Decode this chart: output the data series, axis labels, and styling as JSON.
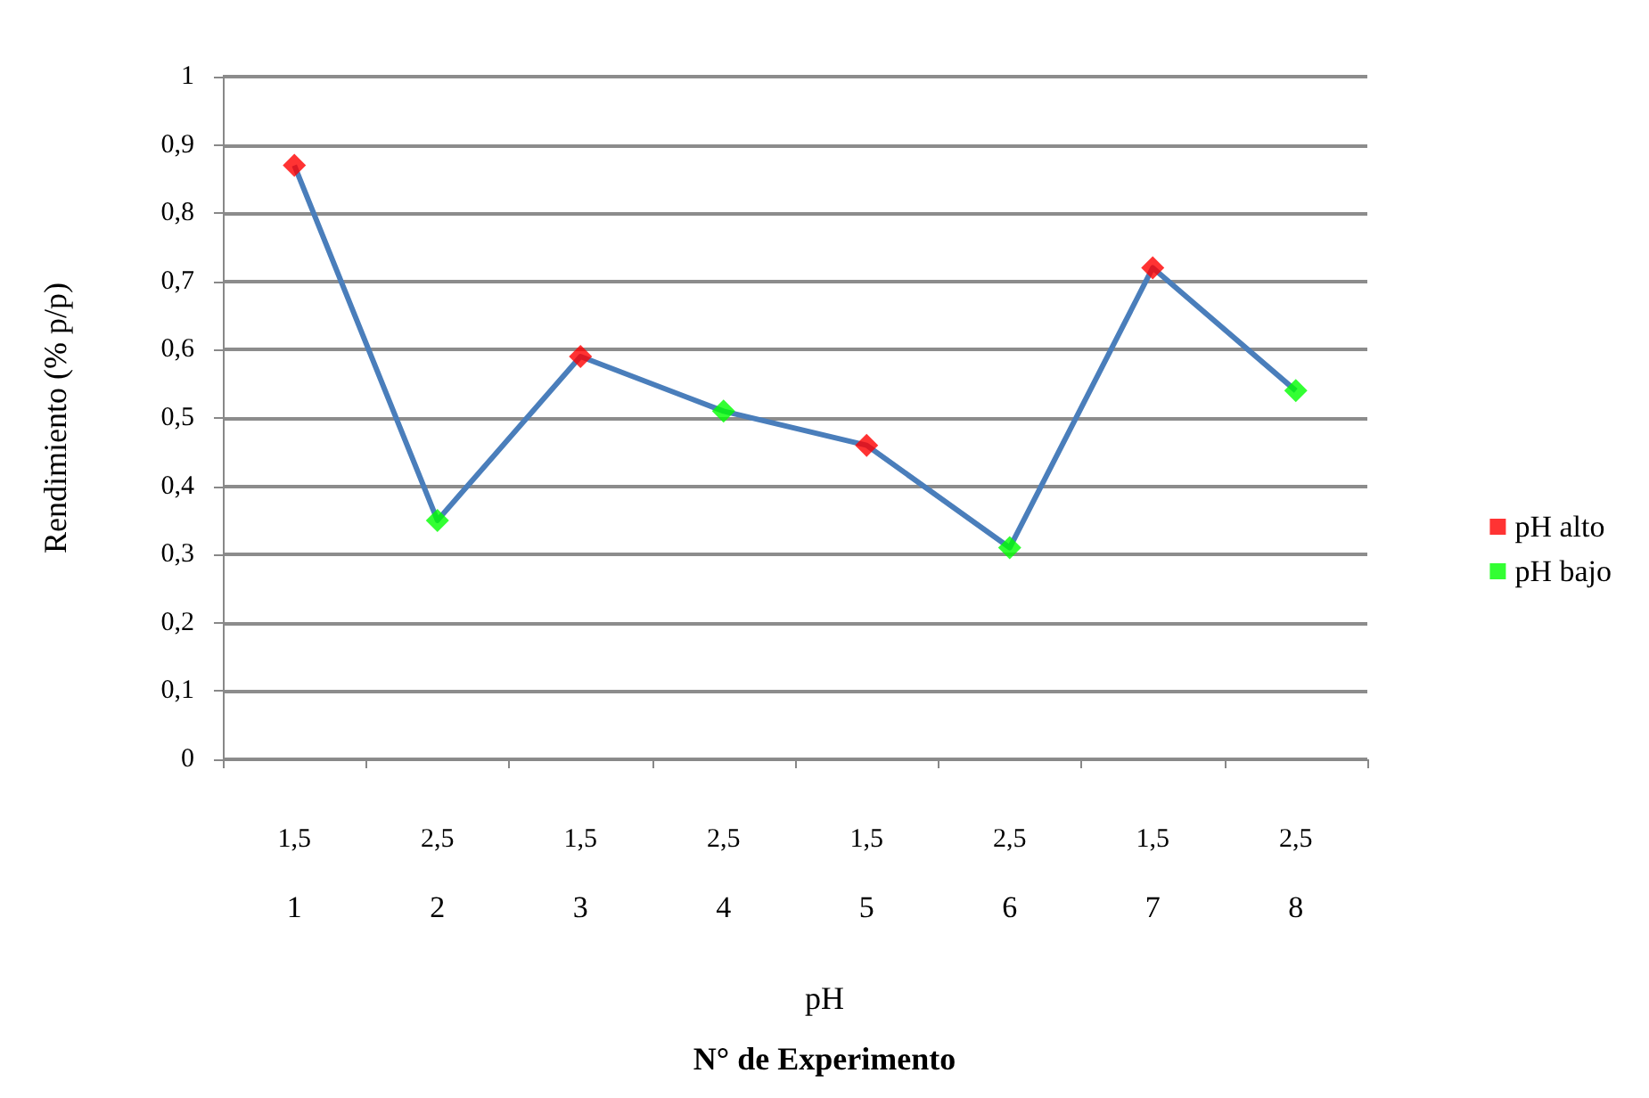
{
  "chart_data": {
    "type": "line",
    "ylabel": "Rendimiento (% p/p)",
    "annotations": [
      "pH",
      "N° de Experimento"
    ],
    "categories": [
      "1,5\n1",
      "2,5\n2",
      "1,5\n3",
      "2,5\n4",
      "1,5\n5",
      "2,5\n6",
      "1,5\n7",
      "2,5\n8"
    ],
    "series": [
      {
        "color": "#4a7ebb",
        "marker": "none",
        "values": [
          0.87,
          0.35,
          0.59,
          0.51,
          0.46,
          0.31,
          0.72,
          0.54
        ]
      },
      {
        "type": "scatter",
        "name": "pH alto",
        "color": "#ff0000",
        "marker": "diamond",
        "values": [
          0.87,
          null,
          0.59,
          null,
          0.46,
          null,
          0.72,
          null
        ]
      },
      {
        "type": "scatter",
        "name": "pH bajo",
        "color": "#00ff00",
        "marker": "diamond",
        "values": [
          null,
          0.35,
          null,
          0.51,
          null,
          0.31,
          null,
          0.54
        ]
      }
    ],
    "ylim": [
      0,
      1
    ],
    "yticks": [
      0,
      {
        "value": 0.1,
        "label": "0,1"
      },
      {
        "value": 0.2,
        "label": "0,2"
      },
      {
        "value": 0.3,
        "label": "0,3"
      },
      {
        "value": 0.4,
        "label": "0,4"
      },
      {
        "value": 0.5,
        "label": "0,5"
      },
      {
        "value": 0.6,
        "label": "0,6"
      },
      {
        "value": 0.7,
        "label": "0,7"
      },
      {
        "value": 0.8,
        "label": "0,8"
      },
      {
        "value": 0.9,
        "label": "0,9"
      },
      1
    ],
    "grid": "y",
    "legend": "right"
  }
}
